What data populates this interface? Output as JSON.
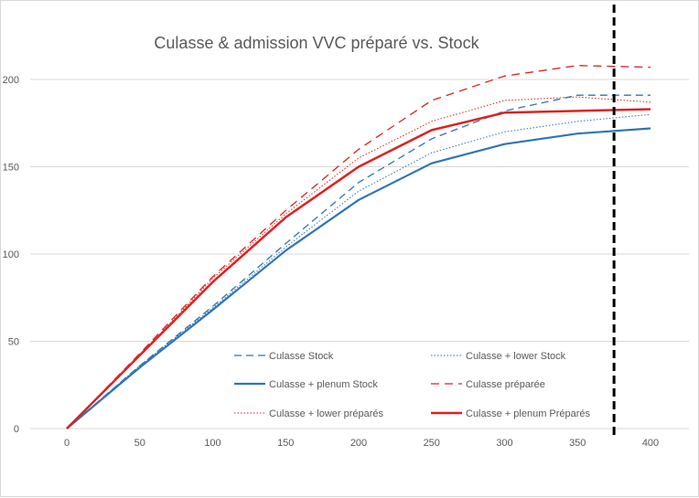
{
  "chart_data": {
    "type": "line",
    "title": "Culasse & admission VVC préparé vs. Stock",
    "xlabel": "",
    "ylabel": "",
    "x": [
      0,
      50,
      100,
      150,
      200,
      250,
      300,
      350,
      400
    ],
    "x_tick_labels": [
      "0",
      "50",
      "100",
      "150",
      "200",
      "250",
      "300",
      "350",
      "400"
    ],
    "y_tick_labels": [
      "0",
      "50",
      "100",
      "150",
      "200"
    ],
    "xlim": [
      0,
      400
    ],
    "ylim": [
      0,
      200
    ],
    "grid": "horizontal",
    "legend_position": "bottom-right inside plot",
    "vertical_marker": {
      "x": 375,
      "color": "#000000",
      "style": "dashed"
    },
    "series": [
      {
        "name": "Culasse Stock",
        "color": "#2e75b6",
        "style": "dashed-thin",
        "values": [
          0,
          36,
          70,
          106,
          141,
          166,
          182,
          191,
          191
        ]
      },
      {
        "name": "Culasse + lower Stock",
        "color": "#2e75b6",
        "style": "dotted",
        "values": [
          0,
          36,
          69,
          104,
          136,
          158,
          170,
          176,
          180
        ]
      },
      {
        "name": "Culasse + plenum Stock",
        "color": "#2e75b6",
        "style": "solid",
        "values": [
          0,
          35,
          68,
          102,
          131,
          152,
          163,
          169,
          172
        ]
      },
      {
        "name": "Culasse préparée",
        "color": "#e02020",
        "style": "dashed",
        "values": [
          0,
          43,
          87,
          125,
          160,
          188,
          202,
          208,
          207
        ]
      },
      {
        "name": "Culasse + lower préparés",
        "color": "#e02020",
        "style": "dotted",
        "values": [
          0,
          42,
          86,
          123,
          155,
          176,
          188,
          190,
          187
        ]
      },
      {
        "name": "Culasse + plenum Préparés",
        "color": "#e02020",
        "style": "solid-thick",
        "values": [
          0,
          42,
          84,
          121,
          150,
          171,
          181,
          182,
          183
        ]
      }
    ]
  }
}
